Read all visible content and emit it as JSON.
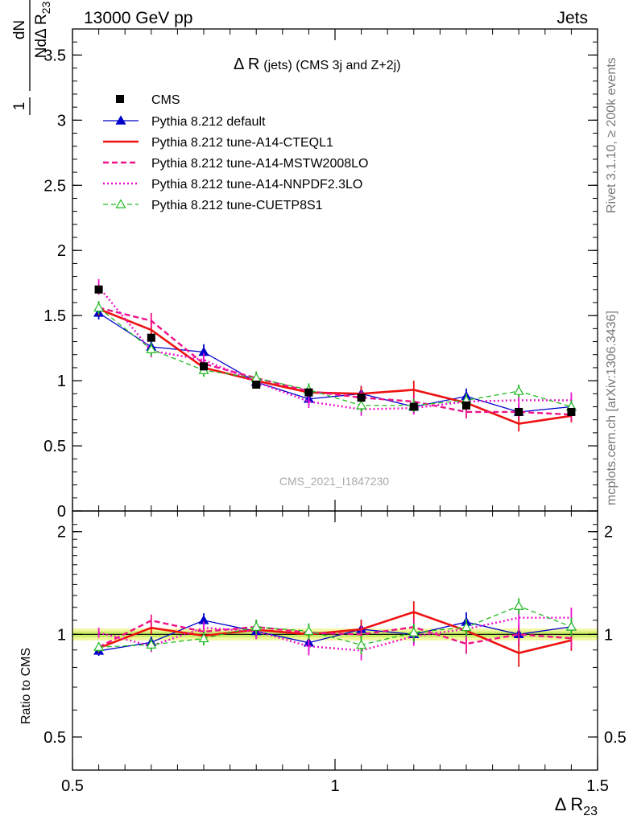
{
  "header": {
    "left": "13000 GeV pp",
    "right": "Jets"
  },
  "side_text": {
    "rivet": "Rivet 3.1.10, ≥ 200k events",
    "mcplots": "mcplots.cern.ch [arXiv:1306.3436]"
  },
  "watermark": "CMS_2021_I1847230",
  "chart_data": {
    "type": "line",
    "title": "Δ R (jets) (CMS 3j and Z+2j)",
    "title_main": "Δ R",
    "title_sub": "(jets) (CMS 3j and Z+2j)",
    "xlabel": "Δ R",
    "xlabel_sub": "23",
    "ylabel": {
      "one": "1",
      "num": "dN",
      "den_pre": "N",
      "den_mid": "dΔ R",
      "den_sub": "23"
    },
    "ratio_ylabel": "Ratio to CMS",
    "xlim": [
      0.5,
      1.5
    ],
    "ylim": [
      0,
      3.7
    ],
    "ratio_ylim": [
      0.4,
      2.3
    ],
    "x_ticks": [
      0.5,
      1,
      1.5
    ],
    "x_tick_labels": [
      "0.5",
      "1",
      "1.5"
    ],
    "y_ticks": [
      0,
      0.5,
      1,
      1.5,
      2,
      2.5,
      3,
      3.5
    ],
    "y_tick_labels": [
      "0",
      "0.5",
      "1",
      "1.5",
      "2",
      "2.5",
      "3",
      "3.5"
    ],
    "ratio_ticks": [
      0.5,
      1,
      2
    ],
    "ratio_tick_labels": [
      "0.5",
      "1",
      "2"
    ],
    "x": [
      0.55,
      0.65,
      0.75,
      0.85,
      0.95,
      1.05,
      1.15,
      1.25,
      1.35,
      1.45
    ],
    "data": {
      "name": "CMS",
      "values": [
        1.7,
        1.33,
        1.11,
        0.97,
        0.91,
        0.87,
        0.8,
        0.81,
        0.76,
        0.76
      ],
      "errors": [
        0.03,
        0.03,
        0.03,
        0.03,
        0.03,
        0.03,
        0.03,
        0.03,
        0.03,
        0.03
      ]
    },
    "band_halfwidth": 0.04,
    "series": [
      {
        "name": "Pythia 8.212 default",
        "color": "#0000cc",
        "dash": "",
        "marker": "triangle-filled",
        "width": 1.3,
        "values": [
          1.52,
          1.26,
          1.22,
          0.99,
          0.86,
          0.9,
          0.8,
          0.88,
          0.76,
          0.8
        ],
        "errors": [
          0.05,
          0.05,
          0.06,
          0.05,
          0.05,
          0.06,
          0.05,
          0.06,
          0.06,
          0.05
        ]
      },
      {
        "name": "Pythia 8.212 tune-A14-CTEQL1",
        "color": "#ee1111",
        "dash": "",
        "marker": "none",
        "width": 2.6,
        "values": [
          1.55,
          1.39,
          1.1,
          1.0,
          0.91,
          0.9,
          0.93,
          0.83,
          0.67,
          0.73
        ],
        "errors": [
          0.05,
          0.06,
          0.05,
          0.05,
          0.05,
          0.06,
          0.07,
          0.06,
          0.06,
          0.05
        ]
      },
      {
        "name": "Pythia 8.212 tune-A14-MSTW2008LO",
        "color": "#ee1188",
        "dash": "7,4",
        "marker": "none",
        "width": 2.4,
        "values": [
          1.56,
          1.46,
          1.13,
          1.02,
          0.92,
          0.87,
          0.84,
          0.76,
          0.76,
          0.74
        ],
        "errors": [
          0.05,
          0.06,
          0.05,
          0.05,
          0.05,
          0.05,
          0.05,
          0.05,
          0.05,
          0.05
        ]
      },
      {
        "name": "Pythia 8.212 tune-A14-NNPDF2.3LO",
        "color": "#ee11cc",
        "dash": "2,3",
        "marker": "none",
        "width": 2.4,
        "values": [
          1.72,
          1.23,
          1.16,
          0.99,
          0.84,
          0.78,
          0.79,
          0.84,
          0.85,
          0.85
        ],
        "errors": [
          0.06,
          0.05,
          0.05,
          0.05,
          0.05,
          0.05,
          0.05,
          0.06,
          0.06,
          0.06
        ]
      },
      {
        "name": "Pythia 8.212 tune-CUETP8S1",
        "color": "#22bb22",
        "dash": "6,4",
        "marker": "triangle-open",
        "width": 1.3,
        "values": [
          1.56,
          1.24,
          1.08,
          1.02,
          0.93,
          0.81,
          0.81,
          0.85,
          0.92,
          0.8
        ],
        "errors": [
          0.05,
          0.05,
          0.05,
          0.05,
          0.05,
          0.05,
          0.05,
          0.05,
          0.05,
          0.05
        ]
      }
    ],
    "legend_position": "top-left",
    "grid": false
  }
}
